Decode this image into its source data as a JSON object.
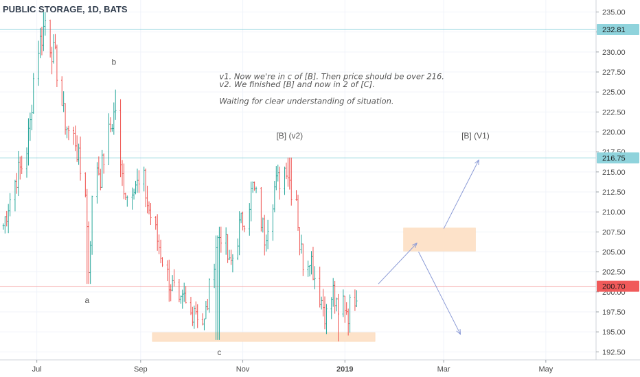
{
  "chart_data": {
    "type": "bar",
    "title": "PUBLIC STORAGE, 1D, BATS",
    "xlabels": [
      {
        "label": "Jul",
        "date": "2018-07-01"
      },
      {
        "label": "Sep",
        "date": "2018-09-01"
      },
      {
        "label": "Nov",
        "date": "2018-11-01"
      },
      {
        "label": "2019",
        "date": "2019-01-01",
        "bold": true
      },
      {
        "label": "Mar",
        "date": "2019-03-01"
      },
      {
        "label": "May",
        "date": "2019-05-01"
      }
    ],
    "yticks": [
      "192.50",
      "195.00",
      "197.50",
      "200.00",
      "202.50",
      "205.00",
      "207.50",
      "210.00",
      "212.50",
      "215.00",
      "217.50",
      "220.00",
      "222.50",
      "225.00",
      "227.50",
      "230.00",
      "232.50",
      "235.00"
    ],
    "ylim": [
      191.5,
      236.5
    ],
    "xlim": [
      "2018-06-09",
      "2019-05-31"
    ],
    "price_path": [
      [
        "2018-06-09",
        206.5
      ],
      [
        "2018-06-14",
        211
      ],
      [
        "2018-06-19",
        214.5
      ],
      [
        "2018-06-24",
        216.5
      ],
      [
        "2018-06-27",
        221
      ],
      [
        "2018-06-30",
        229.5
      ],
      [
        "2018-07-04",
        232
      ],
      [
        "2018-07-06",
        234
      ],
      [
        "2018-07-09",
        231
      ],
      [
        "2018-07-12",
        229
      ],
      [
        "2018-07-14",
        226.5
      ],
      [
        "2018-07-17",
        222
      ],
      [
        "2018-07-20",
        220
      ],
      [
        "2018-07-24",
        219
      ],
      [
        "2018-07-27",
        215
      ],
      [
        "2018-07-30",
        213
      ],
      [
        "2018-08-01",
        203
      ],
      [
        "2018-08-03",
        211
      ],
      [
        "2018-08-06",
        216
      ],
      [
        "2018-08-08",
        214.5
      ],
      [
        "2018-08-11",
        218
      ],
      [
        "2018-08-14",
        220.5
      ],
      [
        "2018-08-17",
        223
      ],
      [
        "2018-08-20",
        215
      ],
      [
        "2018-08-24",
        212
      ],
      [
        "2018-08-28",
        214
      ],
      [
        "2018-08-31",
        213
      ],
      [
        "2018-09-02",
        215
      ],
      [
        "2018-09-05",
        211
      ],
      [
        "2018-09-09",
        208
      ],
      [
        "2018-09-13",
        205
      ],
      [
        "2018-09-17",
        202
      ],
      [
        "2018-09-21",
        200
      ],
      [
        "2018-09-24",
        197.5
      ],
      [
        "2018-09-27",
        199
      ],
      [
        "2018-09-30",
        196.5
      ],
      [
        "2018-10-03",
        198.5
      ],
      [
        "2018-10-06",
        197
      ],
      [
        "2018-10-09",
        196
      ],
      [
        "2018-10-12",
        200
      ],
      [
        "2018-10-16",
        206
      ],
      [
        "2018-10-20",
        208
      ],
      [
        "2018-10-24",
        203
      ],
      [
        "2018-10-27",
        205
      ],
      [
        "2018-10-30",
        208
      ],
      [
        "2018-11-03",
        210
      ],
      [
        "2018-11-07",
        213
      ],
      [
        "2018-11-10",
        211
      ],
      [
        "2018-11-14",
        207
      ],
      [
        "2018-11-17",
        210
      ],
      [
        "2018-11-20",
        213
      ],
      [
        "2018-11-24",
        214.5
      ],
      [
        "2018-11-27",
        216
      ],
      [
        "2018-11-30",
        213
      ],
      [
        "2018-12-03",
        212
      ],
      [
        "2018-12-05",
        206
      ],
      [
        "2018-12-08",
        203
      ],
      [
        "2018-12-11",
        205
      ],
      [
        "2018-12-14",
        202
      ],
      [
        "2018-12-18",
        199
      ],
      [
        "2018-12-21",
        197
      ],
      [
        "2018-12-25",
        200
      ],
      [
        "2018-12-28",
        196.5
      ],
      [
        "2018-12-31",
        199
      ],
      [
        "2019-01-03",
        197.5
      ],
      [
        "2019-01-06",
        199
      ],
      [
        "2019-01-09",
        201
      ]
    ],
    "wicks": [
      {
        "date": "2018-07-06",
        "high": 235.0
      },
      {
        "date": "2018-08-01",
        "low": 201.0
      },
      {
        "date": "2018-08-18",
        "high": 225.3
      },
      {
        "date": "2018-10-17",
        "low": 194.0
      },
      {
        "date": "2018-11-29",
        "high": 216.8
      },
      {
        "date": "2018-12-29",
        "low": 193.8
      }
    ],
    "hlines": [
      {
        "value": 232.81,
        "label": "232.81",
        "color": "#8fd3dc",
        "badge": "#8fd3dc"
      },
      {
        "value": 216.75,
        "label": "216.75",
        "color": "#8fd3dc",
        "badge": "#8fd3dc"
      },
      {
        "value": 200.7,
        "label": "200.70",
        "color": "#f4a9a9",
        "badge": "#f05a5a"
      }
    ],
    "zones": [
      {
        "x0": "2018-09-08",
        "x1": "2019-01-19",
        "y0": 193.8,
        "y1": 194.9,
        "color": "#fde2c9"
      },
      {
        "x0": "2019-02-05",
        "x1": "2019-03-20",
        "y0": 205.1,
        "y1": 208.0,
        "color": "#fde2c9"
      }
    ],
    "projections": [
      {
        "from": [
          "2019-01-21",
          201.0
        ],
        "to": [
          "2019-02-13",
          206.1
        ]
      },
      {
        "from": [
          "2019-03-01",
          207.9
        ],
        "to": [
          "2019-03-22",
          216.5
        ]
      },
      {
        "from": [
          "2019-02-14",
          205.0
        ],
        "to": [
          "2019-03-11",
          194.7
        ]
      }
    ],
    "annotations": [
      {
        "text": "b",
        "date": "2018-08-16",
        "value": 228.4,
        "style": "wave"
      },
      {
        "text": "a",
        "date": "2018-07-31",
        "value": 198.6,
        "style": "wave"
      },
      {
        "text": "c",
        "date": "2018-10-18",
        "value": 192.1,
        "style": "wave"
      },
      {
        "text": "[B] (v2)",
        "date": "2018-11-29",
        "value": 219.2,
        "style": "wave"
      },
      {
        "text": "[B] (V1)",
        "date": "2019-03-20",
        "value": 219.2,
        "style": "wave"
      }
    ],
    "notes": [
      {
        "text": "v1. Now we're in c of [B]. Then price should be over 216.",
        "date": "2018-10-18",
        "value": 226.6
      },
      {
        "text": "v2. We finished [B] and now in 2 of [C].",
        "date": "2018-10-18",
        "value": 225.6
      },
      {
        "text": "Waiting for clear understanding of situation.",
        "date": "2018-10-18",
        "value": 223.5
      }
    ],
    "up_color": "#26a69a",
    "down_color": "#ef5350"
  }
}
